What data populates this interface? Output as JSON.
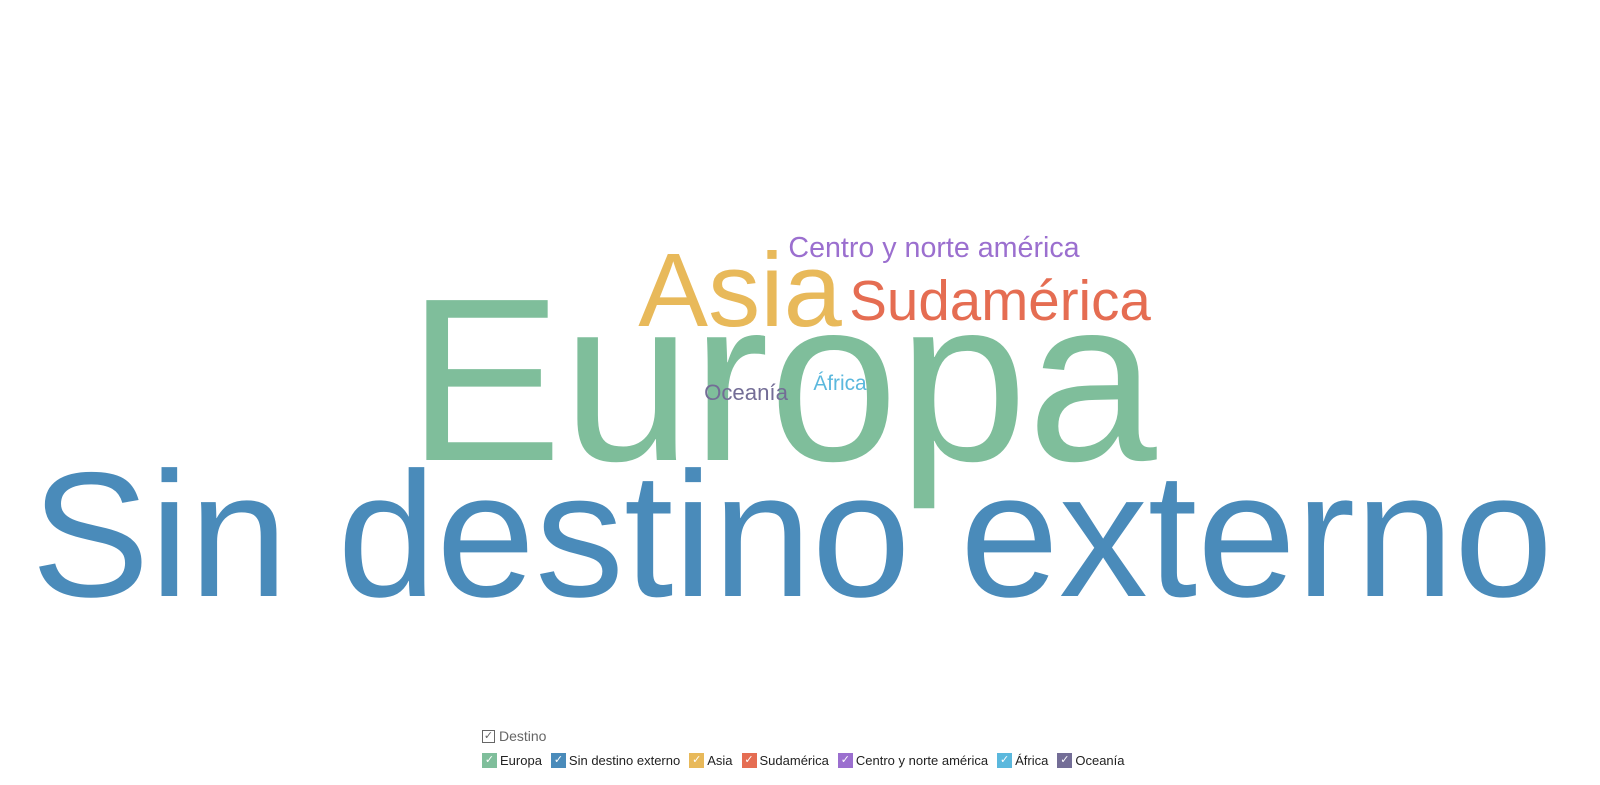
{
  "chart_data": {
    "type": "wordcloud",
    "legend_title": "Destino",
    "legend_placement": "bottom",
    "words": [
      {
        "text": "Sin destino externo",
        "weight": 100,
        "color": "#4a8bba"
      },
      {
        "text": "Europa",
        "weight": 72,
        "color": "#7fbe9b"
      },
      {
        "text": "Asia",
        "weight": 36,
        "color": "#e8b95a"
      },
      {
        "text": "Sudamérica",
        "weight": 19,
        "color": "#e56d52"
      },
      {
        "text": "Centro y norte américa",
        "weight": 11,
        "color": "#9b6fcf"
      },
      {
        "text": "África",
        "weight": 8,
        "color": "#5bb8dd"
      },
      {
        "text": "Oceanía",
        "weight": 6,
        "color": "#736d96"
      }
    ],
    "legend": [
      {
        "label": "Europa",
        "color": "#7fbe9b",
        "checked": true
      },
      {
        "label": "Sin destino externo",
        "color": "#4a8bba",
        "checked": true
      },
      {
        "label": "Asia",
        "color": "#e8b95a",
        "checked": true
      },
      {
        "label": "Sudamérica",
        "color": "#e56d52",
        "checked": true
      },
      {
        "label": "Centro y norte américa",
        "color": "#9b6fcf",
        "checked": true
      },
      {
        "label": "África",
        "color": "#5bb8dd",
        "checked": true
      },
      {
        "label": "Oceanía",
        "color": "#736d96",
        "checked": true
      }
    ]
  }
}
